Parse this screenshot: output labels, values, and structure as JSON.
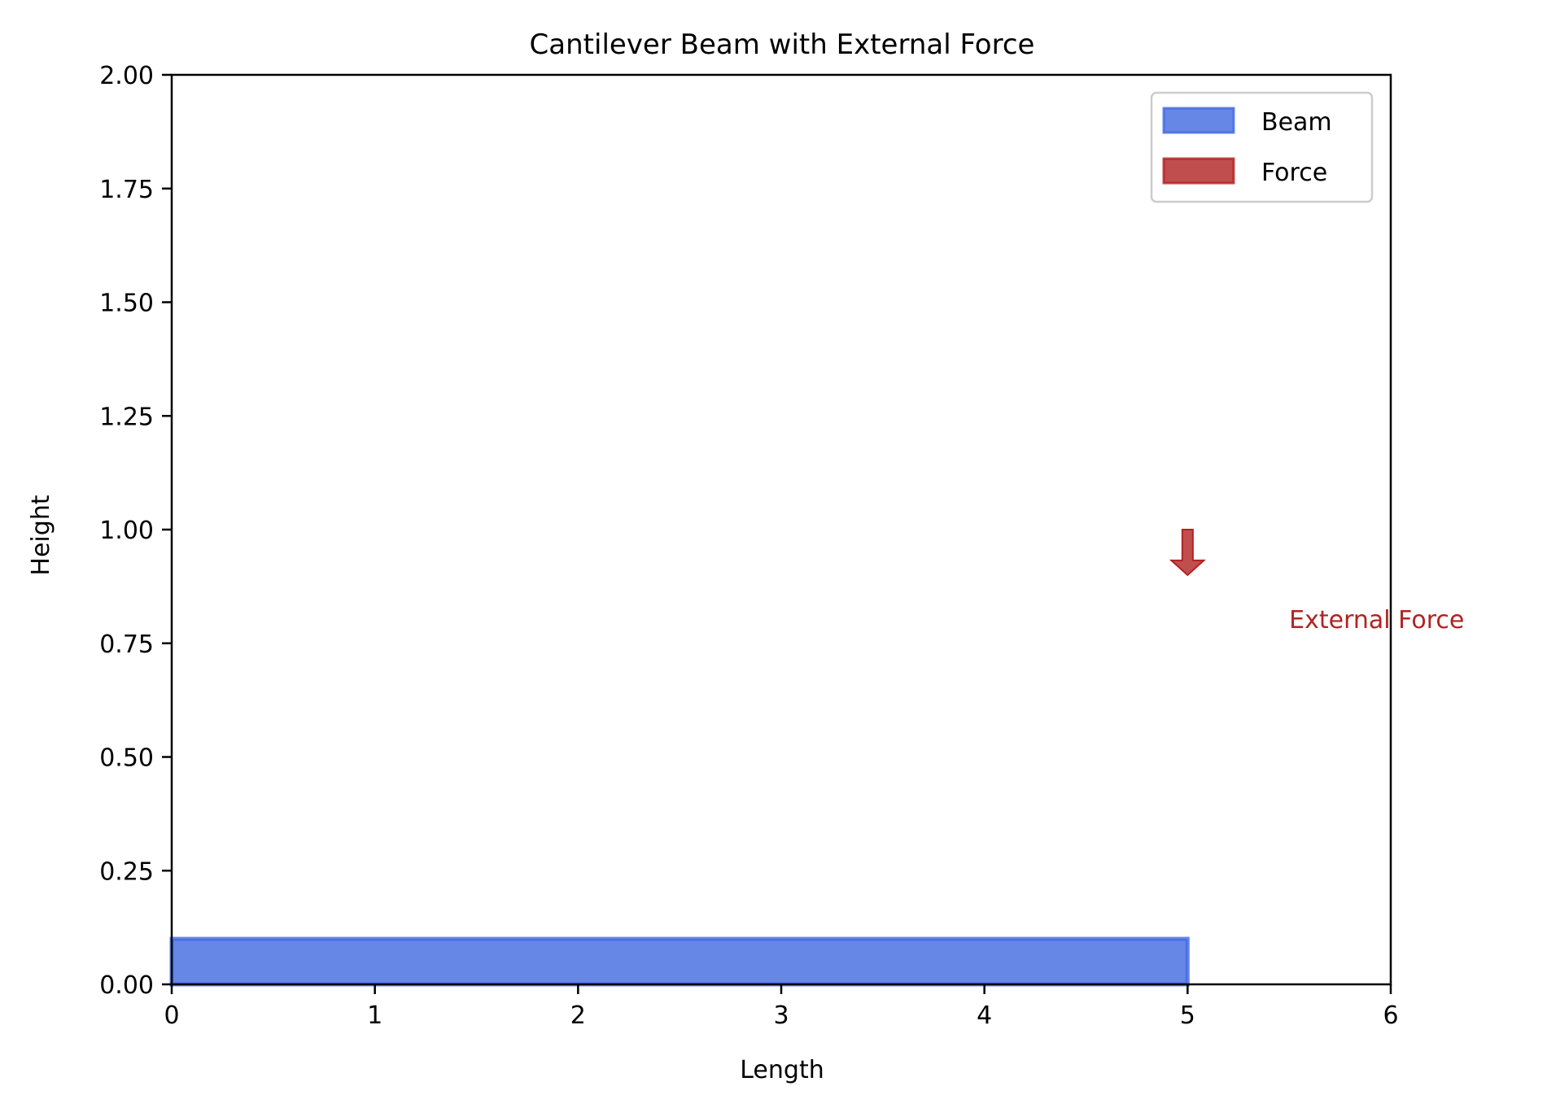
{
  "chart_data": {
    "type": "bar",
    "title": "Cantilever Beam with External Force",
    "xlabel": "Length",
    "ylabel": "Height",
    "xlim": [
      0,
      6
    ],
    "ylim": [
      0,
      2
    ],
    "x_ticks": [
      "0",
      "1",
      "2",
      "3",
      "4",
      "5",
      "6"
    ],
    "y_ticks": [
      "0.00",
      "0.25",
      "0.50",
      "0.75",
      "1.00",
      "1.25",
      "1.50",
      "1.75",
      "2.00"
    ],
    "grid": false,
    "legend": {
      "position": "upper right",
      "entries": [
        {
          "label": "Beam",
          "color": "#4169e1"
        },
        {
          "label": "Force",
          "color": "#b22222"
        }
      ]
    },
    "beam": {
      "x_start": 0,
      "x_end": 5,
      "y_bottom": 0,
      "y_top": 0.1,
      "color": "#4169e1",
      "alpha": 0.8
    },
    "force": {
      "x": 5,
      "y_start": 1.0,
      "y_end": 0.9,
      "color": "#b22222",
      "alpha": 0.8
    },
    "annotation": {
      "text": "External Force",
      "x": 5.5,
      "y": 0.8,
      "color": "#b22222"
    }
  }
}
